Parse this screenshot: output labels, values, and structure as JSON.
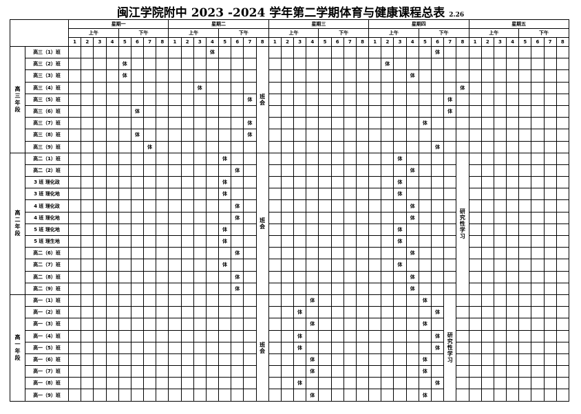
{
  "header": {
    "title": "闽江学院附中 2023 -2024 学年第二学期体育与健康课程总表",
    "date": "2.26"
  },
  "table": {
    "days": [
      "星期一",
      "星期二",
      "星期三",
      "星期四",
      "星期五"
    ],
    "halves": [
      "上午",
      "下午"
    ],
    "periods": [
      1,
      2,
      3,
      4,
      5,
      6,
      7,
      8
    ],
    "pe_label": "体",
    "groups": [
      {
        "label": "高三年段",
        "rows": [
          {
            "name": "高三（1）班",
            "slots": [
              [
                1,
                4
              ],
              [
                3,
                6
              ]
            ]
          },
          {
            "name": "高三（2）班",
            "slots": [
              [
                0,
                5
              ],
              [
                3,
                2
              ]
            ]
          },
          {
            "name": "高三（3）班",
            "slots": [
              [
                0,
                5
              ],
              [
                3,
                4
              ]
            ]
          },
          {
            "name": "高三（4）班",
            "slots": [
              [
                1,
                3
              ],
              [
                3,
                8
              ]
            ]
          },
          {
            "name": "高三（5）班",
            "slots": [
              [
                1,
                7
              ],
              [
                3,
                7
              ]
            ]
          },
          {
            "name": "高三（6）班",
            "slots": [
              [
                0,
                6
              ],
              [
                3,
                7
              ]
            ]
          },
          {
            "name": "高三（7）班",
            "slots": [
              [
                1,
                7
              ],
              [
                3,
                5
              ]
            ]
          },
          {
            "name": "高三（8）班",
            "slots": [
              [
                0,
                6
              ],
              [
                1,
                7
              ]
            ]
          },
          {
            "name": "高三（9）班",
            "slots": [
              [
                0,
                7
              ],
              [
                3,
                6
              ]
            ]
          }
        ],
        "merged": [
          {
            "label": "班会",
            "day": 1,
            "period": 8
          }
        ]
      },
      {
        "label": "高二年段",
        "rows": [
          {
            "name": "高二（1）班",
            "slots": [
              [
                1,
                5
              ],
              [
                3,
                3
              ]
            ]
          },
          {
            "name": "高二（2）班",
            "slots": [
              [
                1,
                6
              ],
              [
                3,
                4
              ]
            ]
          },
          {
            "name": "3 班 理化政",
            "slots": [
              [
                1,
                5
              ],
              [
                3,
                3
              ]
            ]
          },
          {
            "name": "3 班 理化地",
            "slots": [
              [
                1,
                5
              ],
              [
                3,
                3
              ]
            ]
          },
          {
            "name": "4 班 理化政",
            "slots": [
              [
                1,
                6
              ],
              [
                3,
                4
              ]
            ]
          },
          {
            "name": "4 班 理化地",
            "slots": [
              [
                1,
                6
              ],
              [
                3,
                4
              ]
            ]
          },
          {
            "name": "5 班 理化地",
            "slots": [
              [
                1,
                5
              ],
              [
                3,
                3
              ]
            ]
          },
          {
            "name": "5 班 理生地",
            "slots": [
              [
                1,
                5
              ],
              [
                3,
                3
              ]
            ]
          },
          {
            "name": "高二（6）班",
            "slots": [
              [
                1,
                6
              ],
              [
                3,
                4
              ]
            ]
          },
          {
            "name": "高二（7）班",
            "slots": [
              [
                1,
                5
              ],
              [
                3,
                3
              ]
            ]
          },
          {
            "name": "高二（8）班",
            "slots": [
              [
                1,
                6
              ],
              [
                3,
                4
              ]
            ]
          },
          {
            "name": "高二（9）班",
            "slots": [
              [
                1,
                6
              ],
              [
                3,
                4
              ]
            ]
          }
        ],
        "merged": [
          {
            "label": "班会",
            "day": 1,
            "period": 8
          },
          {
            "label": "研究性学习",
            "day": 3,
            "period": 8
          }
        ]
      },
      {
        "label": "高一年段",
        "rows": [
          {
            "name": "高一（1）班",
            "slots": [
              [
                2,
                4
              ],
              [
                3,
                5
              ]
            ]
          },
          {
            "name": "高一（2）班",
            "slots": [
              [
                2,
                3
              ],
              [
                3,
                6
              ]
            ]
          },
          {
            "name": "高一（3）班",
            "slots": [
              [
                2,
                4
              ],
              [
                3,
                5
              ]
            ]
          },
          {
            "name": "高一（4）班",
            "slots": [
              [
                2,
                3
              ],
              [
                3,
                6
              ]
            ]
          },
          {
            "name": "高一（5）班",
            "slots": [
              [
                2,
                3
              ],
              [
                3,
                6
              ]
            ]
          },
          {
            "name": "高一（6）班",
            "slots": [
              [
                2,
                4
              ],
              [
                3,
                5
              ]
            ]
          },
          {
            "name": "高一（7）班",
            "slots": [
              [
                2,
                4
              ],
              [
                3,
                5
              ]
            ]
          },
          {
            "name": "高一（8）班",
            "slots": [
              [
                2,
                3
              ],
              [
                3,
                6
              ]
            ]
          },
          {
            "name": "高一（9）班",
            "slots": [
              [
                2,
                4
              ],
              [
                3,
                5
              ]
            ]
          }
        ],
        "merged": [
          {
            "label": "班会",
            "day": 1,
            "period": 8
          },
          {
            "label": "研究性学习",
            "day": 3,
            "period": 7
          }
        ]
      }
    ]
  }
}
